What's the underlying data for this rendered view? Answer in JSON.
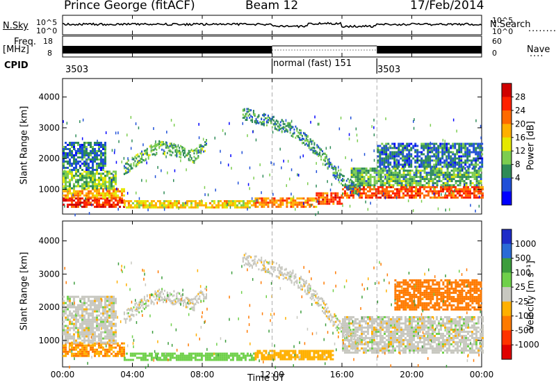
{
  "header": {
    "station": "Prince George (fitACF)",
    "beam": "Beam 12",
    "date": "17/Feb/2014"
  },
  "top_panels": {
    "nsky_label": "N.Sky",
    "nsearch_label": "N.Search",
    "nsky_ticks": [
      "10^5",
      "10^0"
    ],
    "nsky_right_ticks": [
      "10^5",
      "10^0"
    ],
    "freq_label_1": "Freq.",
    "freq_label_2": "[MHz]",
    "freq_ticks": [
      "18",
      "8"
    ],
    "nave_label": "Nave",
    "nave_ticks": [
      "60",
      "0"
    ],
    "cpid_label": "CPID",
    "cpid_segments": [
      {
        "label": "3503",
        "start_hour": 0
      },
      {
        "label": "normal (fast) 151",
        "start_hour": 12
      },
      {
        "label": "3503",
        "start_hour": 18
      }
    ]
  },
  "colors": {
    "power": [
      "#0000ff",
      "#1f4fd8",
      "#2e8b57",
      "#7ccd4f",
      "#e5e800",
      "#ffb000",
      "#ff6a00",
      "#ff2000",
      "#d00000"
    ],
    "velocity": [
      "#1e2cc8",
      "#2a6bd6",
      "#3c9d3c",
      "#6fd04a",
      "#c8c8c0",
      "#ffb000",
      "#ff7a00",
      "#ff3300",
      "#e00000"
    ]
  },
  "chart_data": [
    {
      "type": "heatmap",
      "name": "power",
      "ylabel": "Slant Range [km]",
      "colorbar_label": "Power [dB]",
      "colorbar_ticks": [
        "28",
        "24",
        "20",
        "16",
        "12",
        "8",
        "4"
      ],
      "colorbar_range": [
        0,
        32
      ],
      "ylim": [
        200,
        4600
      ],
      "yticks": [
        "4000",
        "3000",
        "2000",
        "1000"
      ],
      "xlim_hours": [
        0,
        24
      ],
      "bands": [
        {
          "t": [
            0.0,
            3.5
          ],
          "r": [
            400,
            700
          ],
          "v": 28
        },
        {
          "t": [
            0.0,
            3.5
          ],
          "r": [
            700,
            1000
          ],
          "v": 20
        },
        {
          "t": [
            0.0,
            3.0
          ],
          "r": [
            1000,
            1600
          ],
          "v": 12
        },
        {
          "t": [
            0.0,
            2.5
          ],
          "r": [
            1600,
            2500
          ],
          "v": 6
        },
        {
          "t": [
            3.5,
            11.0
          ],
          "r": [
            380,
            600
          ],
          "v": 18
        },
        {
          "t": [
            11.0,
            14.5
          ],
          "r": [
            400,
            700
          ],
          "v": 22
        },
        {
          "t": [
            14.5,
            16.0
          ],
          "r": [
            500,
            900
          ],
          "v": 26
        },
        {
          "t": [
            16.0,
            24.0
          ],
          "r": [
            700,
            1100
          ],
          "v": 26
        },
        {
          "t": [
            16.5,
            24.0
          ],
          "r": [
            1100,
            1700
          ],
          "v": 10
        },
        {
          "t": [
            18.0,
            24.0
          ],
          "r": [
            1700,
            2500
          ],
          "v": 6
        }
      ],
      "arcs": [
        {
          "points": [
            [
              3.5,
              1700
            ],
            [
              4.5,
              2100
            ],
            [
              5.5,
              2400
            ],
            [
              6.5,
              2300
            ],
            [
              7.5,
              2100
            ],
            [
              8.2,
              2500
            ]
          ],
          "v": 10
        },
        {
          "points": [
            [
              10.3,
              3500
            ],
            [
              11.5,
              3300
            ],
            [
              13.0,
              3000
            ],
            [
              14.0,
              2600
            ],
            [
              15.0,
              2000
            ],
            [
              16.0,
              1300
            ],
            [
              17.0,
              1000
            ]
          ],
          "v": 8
        }
      ]
    },
    {
      "type": "heatmap",
      "name": "velocity",
      "ylabel": "Slant Range [km]",
      "colorbar_label": "Velocity [m s⁻¹]",
      "colorbar_ticks": [
        "1000",
        "500",
        "100",
        "25",
        "-25",
        "-100",
        "-500",
        "-1000"
      ],
      "ylim": [
        200,
        4600
      ],
      "yticks": [
        "4000",
        "3000",
        "2000",
        "1000"
      ],
      "xlim_hours": [
        0,
        24
      ],
      "xticks": [
        "00:00",
        "04:00",
        "08:00",
        "12:00",
        "16:00",
        "20:00",
        "00:00"
      ],
      "xlabel": "Time UT",
      "bands": [
        {
          "t": [
            0.0,
            3.5
          ],
          "r": [
            500,
            900
          ],
          "v": -100
        },
        {
          "t": [
            0.0,
            3.0
          ],
          "r": [
            900,
            2300
          ],
          "v": 0
        },
        {
          "t": [
            3.5,
            11.0
          ],
          "r": [
            380,
            600
          ],
          "v": 60
        },
        {
          "t": [
            11.0,
            15.5
          ],
          "r": [
            400,
            700
          ],
          "v": -60
        },
        {
          "t": [
            16.0,
            24.0
          ],
          "r": [
            600,
            1700
          ],
          "v": 0
        },
        {
          "t": [
            19.0,
            24.0
          ],
          "r": [
            1900,
            2800
          ],
          "v": -300
        }
      ],
      "arcs": [
        {
          "points": [
            [
              3.5,
              1700
            ],
            [
              4.5,
              2100
            ],
            [
              5.5,
              2400
            ],
            [
              6.5,
              2300
            ],
            [
              7.5,
              2100
            ],
            [
              8.2,
              2500
            ]
          ],
          "v": 0
        },
        {
          "points": [
            [
              10.3,
              3500
            ],
            [
              11.5,
              3300
            ],
            [
              13.0,
              3000
            ],
            [
              14.0,
              2600
            ],
            [
              15.0,
              2000
            ],
            [
              16.0,
              1300
            ],
            [
              17.0,
              1000
            ]
          ],
          "v": 0
        }
      ]
    }
  ]
}
